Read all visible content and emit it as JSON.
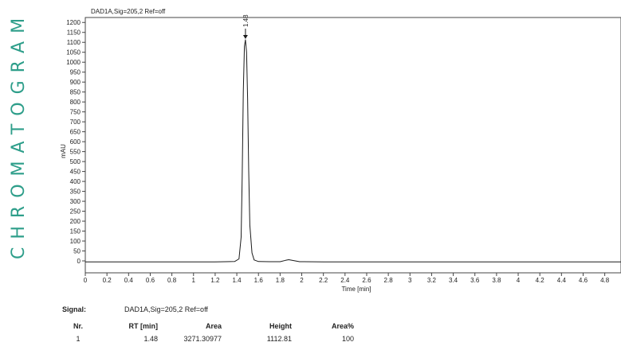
{
  "side_title": "CHROMATOGRAM",
  "chart_data": {
    "type": "line",
    "title": "DAD1A,Sig=205,2  Ref=off",
    "xlabel": "Time [min]",
    "ylabel": "mAU",
    "xlim": [
      0,
      4.95
    ],
    "ylim": [
      -60,
      1225
    ],
    "x_ticks": [
      0,
      0.2,
      0.4,
      0.6,
      0.8,
      1,
      1.2,
      1.4,
      1.6,
      1.8,
      2,
      2.2,
      2.4,
      2.6,
      2.8,
      3,
      3.2,
      3.4,
      3.6,
      3.8,
      4,
      4.2,
      4.4,
      4.6,
      4.8
    ],
    "x_tick_labels": [
      "0",
      "0.2",
      "0.4",
      "0.6",
      "0.8",
      "1",
      "1.2",
      "1.4",
      "1.6",
      "1.8",
      "2",
      "2.2",
      "2.4",
      "2.6",
      "2.8",
      "3",
      "3.2",
      "3.4",
      "3.6",
      "3.8",
      "4",
      "4.2",
      "4.4",
      "4.6",
      "4.8"
    ],
    "y_ticks": [
      0,
      50,
      100,
      150,
      200,
      250,
      300,
      350,
      400,
      450,
      500,
      550,
      600,
      650,
      700,
      750,
      800,
      850,
      900,
      950,
      1000,
      1050,
      1100,
      1150,
      1200
    ],
    "series": [
      {
        "x": [
          0,
          0.5,
          1.0,
          1.2,
          1.3,
          1.38,
          1.42,
          1.44,
          1.45,
          1.46,
          1.47,
          1.48,
          1.49,
          1.5,
          1.51,
          1.52,
          1.54,
          1.56,
          1.6,
          1.7,
          1.8,
          1.85,
          1.88,
          1.92,
          1.98,
          2.2,
          3.0,
          4.0,
          4.95
        ],
        "y": [
          -5,
          -5,
          -5,
          -5,
          -4,
          -3,
          10,
          120,
          420,
          850,
          1080,
          1112.81,
          1050,
          820,
          450,
          180,
          40,
          5,
          -3,
          -4,
          -4,
          3,
          6,
          2,
          -4,
          -5,
          -5,
          -5,
          -5
        ]
      }
    ],
    "peak_annotation": {
      "x": 1.48,
      "y": 1112.81,
      "label": "1.48"
    }
  },
  "results": {
    "signal_label": "Signal:",
    "signal_value": "DAD1A,Sig=205,2  Ref=off",
    "columns": {
      "nr": "Nr.",
      "rt": "RT [min]",
      "area": "Area",
      "height": "Height",
      "area_pct": "Area%"
    },
    "rows": [
      {
        "nr": "1",
        "rt": "1.48",
        "area": "3271.30977",
        "height": "1112.81",
        "area_pct": "100"
      }
    ]
  }
}
